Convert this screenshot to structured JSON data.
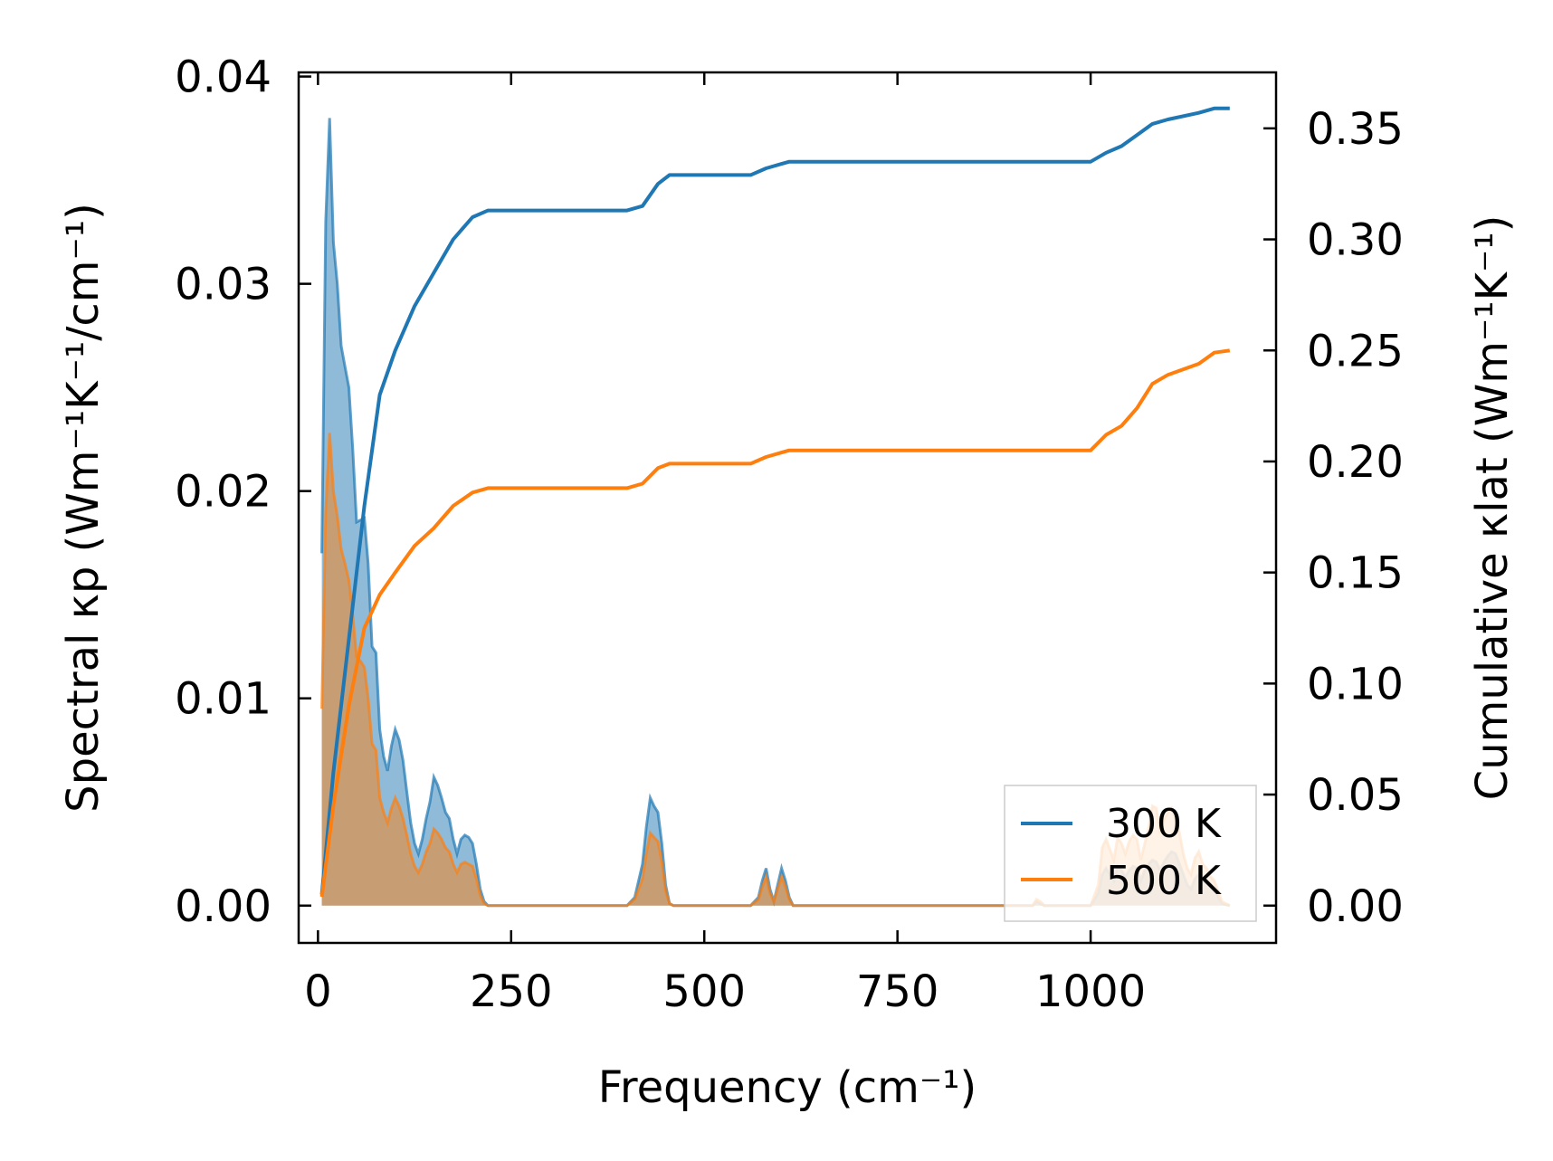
{
  "chart_data": {
    "type": "line",
    "xlabel": "Frequency (cm⁻¹)",
    "ylabel_left": "Spectral κp (Wm⁻¹K⁻¹/cm⁻¹)",
    "ylabel_right": "Cumulative κlat (Wm⁻¹K⁻¹)",
    "xlim": [
      -25,
      1240
    ],
    "ylim_left": [
      -0.0018,
      0.0402
    ],
    "ylim_right": [
      -0.0168,
      0.3752
    ],
    "x_ticks": [
      0,
      250,
      500,
      750,
      1000
    ],
    "x_tick_labels": [
      "0",
      "250",
      "500",
      "750",
      "1000"
    ],
    "y_left_ticks": [
      0.0,
      0.01,
      0.02,
      0.03,
      0.04
    ],
    "y_left_tick_labels": [
      "0.00",
      "0.01",
      "0.02",
      "0.03",
      "0.04"
    ],
    "y_right_ticks": [
      0.0,
      0.05,
      0.1,
      0.15,
      0.2,
      0.25,
      0.3,
      0.35
    ],
    "y_right_tick_labels": [
      "0.00",
      "0.05",
      "0.10",
      "0.15",
      "0.20",
      "0.25",
      "0.30",
      "0.35"
    ],
    "legend": {
      "position": "lower-right",
      "entries": [
        "300 K",
        "500 K"
      ]
    },
    "colors": {
      "300K": "#1f77b4",
      "500K": "#ff7f0e"
    },
    "series": [
      {
        "name": "300 K",
        "axis": "right",
        "kind": "cumulative",
        "x": [
          5,
          20,
          40,
          60,
          80,
          100,
          125,
          150,
          175,
          200,
          220,
          300,
          400,
          420,
          440,
          455,
          500,
          560,
          580,
          600,
          610,
          700,
          800,
          930,
          1000,
          1020,
          1040,
          1060,
          1080,
          1100,
          1140,
          1160,
          1180
        ],
        "y": [
          0.005,
          0.06,
          0.12,
          0.18,
          0.23,
          0.25,
          0.27,
          0.285,
          0.3,
          0.31,
          0.313,
          0.313,
          0.313,
          0.315,
          0.325,
          0.329,
          0.329,
          0.329,
          0.332,
          0.334,
          0.335,
          0.335,
          0.335,
          0.335,
          0.335,
          0.339,
          0.342,
          0.347,
          0.352,
          0.354,
          0.357,
          0.359,
          0.359
        ]
      },
      {
        "name": "500 K",
        "axis": "right",
        "kind": "cumulative",
        "x": [
          5,
          20,
          40,
          60,
          80,
          100,
          125,
          150,
          175,
          200,
          220,
          300,
          400,
          420,
          440,
          455,
          500,
          560,
          580,
          600,
          610,
          700,
          800,
          930,
          1000,
          1020,
          1040,
          1060,
          1080,
          1100,
          1140,
          1160,
          1180
        ],
        "y": [
          0.004,
          0.045,
          0.09,
          0.125,
          0.14,
          0.15,
          0.162,
          0.17,
          0.18,
          0.186,
          0.188,
          0.188,
          0.188,
          0.19,
          0.197,
          0.199,
          0.199,
          0.199,
          0.202,
          0.204,
          0.205,
          0.205,
          0.205,
          0.205,
          0.205,
          0.212,
          0.216,
          0.224,
          0.235,
          0.239,
          0.244,
          0.249,
          0.25
        ]
      },
      {
        "name": "300 K",
        "axis": "left",
        "kind": "spectral",
        "x": [
          5,
          10,
          15,
          20,
          25,
          30,
          35,
          40,
          45,
          50,
          55,
          60,
          65,
          70,
          75,
          80,
          85,
          90,
          95,
          100,
          105,
          110,
          115,
          120,
          125,
          130,
          135,
          140,
          145,
          150,
          155,
          160,
          165,
          170,
          175,
          180,
          185,
          190,
          195,
          200,
          205,
          210,
          215,
          220,
          230,
          400,
          410,
          420,
          425,
          430,
          435,
          440,
          445,
          450,
          455,
          460,
          470,
          550,
          560,
          570,
          575,
          580,
          585,
          590,
          595,
          600,
          605,
          610,
          615,
          620,
          630,
          900,
          925,
          930,
          935,
          940,
          1000,
          1010,
          1015,
          1020,
          1030,
          1035,
          1040,
          1045,
          1050,
          1055,
          1060,
          1065,
          1070,
          1075,
          1080,
          1085,
          1090,
          1095,
          1100,
          1105,
          1110,
          1115,
          1120,
          1125,
          1130,
          1135,
          1140,
          1145,
          1150,
          1155,
          1160,
          1170,
          1180
        ],
        "y": [
          0.017,
          0.033,
          0.038,
          0.032,
          0.03,
          0.027,
          0.026,
          0.025,
          0.022,
          0.0185,
          0.0186,
          0.0187,
          0.0165,
          0.0125,
          0.0122,
          0.0085,
          0.0072,
          0.0065,
          0.0077,
          0.0085,
          0.008,
          0.007,
          0.0055,
          0.004,
          0.003,
          0.0025,
          0.0032,
          0.0042,
          0.005,
          0.0062,
          0.0058,
          0.0052,
          0.0045,
          0.0042,
          0.0032,
          0.0025,
          0.0032,
          0.0034,
          0.0033,
          0.003,
          0.002,
          0.0008,
          0.0002,
          0.0,
          0.0,
          0.0,
          0.0004,
          0.002,
          0.0038,
          0.0052,
          0.0048,
          0.0045,
          0.003,
          0.001,
          0.0001,
          0.0,
          0.0,
          0.0,
          0.0,
          0.0004,
          0.0012,
          0.0018,
          0.0008,
          0.0002,
          0.001,
          0.0018,
          0.0012,
          0.0004,
          0.0,
          0.0,
          0.0,
          0.0,
          0.0,
          0.0002,
          0.0001,
          0.0,
          0.0,
          0.0006,
          0.0015,
          0.0018,
          0.0012,
          0.0019,
          0.0017,
          0.0014,
          0.0017,
          0.0019,
          0.0018,
          0.0012,
          0.0017,
          0.002,
          0.0022,
          0.0021,
          0.0017,
          0.0021,
          0.0024,
          0.0026,
          0.0025,
          0.002,
          0.0015,
          0.001,
          0.0008,
          0.0013,
          0.0015,
          0.0012,
          0.0011,
          0.0009,
          0.0008,
          0.0001,
          0.0
        ]
      },
      {
        "name": "500 K",
        "axis": "left",
        "kind": "spectral",
        "x": [
          5,
          10,
          15,
          20,
          25,
          30,
          35,
          40,
          45,
          50,
          55,
          60,
          65,
          70,
          75,
          80,
          85,
          90,
          95,
          100,
          105,
          110,
          115,
          120,
          125,
          130,
          135,
          140,
          145,
          150,
          155,
          160,
          165,
          170,
          175,
          180,
          185,
          190,
          195,
          200,
          205,
          210,
          215,
          220,
          230,
          400,
          410,
          420,
          425,
          430,
          435,
          440,
          445,
          450,
          455,
          460,
          470,
          550,
          560,
          570,
          575,
          580,
          585,
          590,
          595,
          600,
          605,
          610,
          615,
          620,
          630,
          900,
          925,
          930,
          935,
          940,
          1000,
          1010,
          1015,
          1020,
          1030,
          1035,
          1040,
          1045,
          1050,
          1055,
          1060,
          1065,
          1070,
          1075,
          1080,
          1085,
          1090,
          1095,
          1100,
          1105,
          1110,
          1115,
          1120,
          1125,
          1130,
          1135,
          1140,
          1145,
          1150,
          1155,
          1160,
          1170,
          1180
        ],
        "y": [
          0.0095,
          0.019,
          0.0228,
          0.02,
          0.0188,
          0.0172,
          0.0165,
          0.0157,
          0.014,
          0.012,
          0.0118,
          0.0115,
          0.01,
          0.0078,
          0.0075,
          0.0052,
          0.0045,
          0.004,
          0.0047,
          0.0052,
          0.0048,
          0.0042,
          0.0034,
          0.0025,
          0.0019,
          0.0016,
          0.002,
          0.0026,
          0.003,
          0.0037,
          0.0035,
          0.0032,
          0.0028,
          0.0026,
          0.002,
          0.0016,
          0.002,
          0.0021,
          0.002,
          0.0019,
          0.0013,
          0.0005,
          0.0001,
          0.0,
          0.0,
          0.0,
          0.0003,
          0.0013,
          0.0025,
          0.0035,
          0.0033,
          0.0031,
          0.0021,
          0.0007,
          0.0001,
          0.0,
          0.0,
          0.0,
          0.0,
          0.0003,
          0.0009,
          0.0014,
          0.0006,
          0.0002,
          0.0008,
          0.0014,
          0.0009,
          0.0003,
          0.0,
          0.0,
          0.0,
          0.0,
          0.0,
          0.0003,
          0.0002,
          0.0,
          0.0,
          0.001,
          0.0028,
          0.0032,
          0.0022,
          0.0033,
          0.003,
          0.0025,
          0.0031,
          0.0034,
          0.0032,
          0.0022,
          0.003,
          0.0037,
          0.0048,
          0.0047,
          0.0035,
          0.0042,
          0.0045,
          0.0047,
          0.0042,
          0.0035,
          0.0025,
          0.0018,
          0.0015,
          0.0023,
          0.0026,
          0.002,
          0.0018,
          0.0014,
          0.0012,
          0.0002,
          0.0
        ]
      }
    ]
  }
}
